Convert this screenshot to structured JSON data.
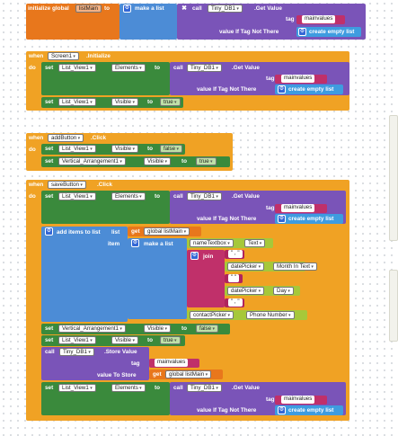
{
  "colors": {
    "global": "#e8771c",
    "event": "#f0a224",
    "component_setter": "#3a8a3c",
    "tinydb": "#7a54b8",
    "list": "#4c8cd6",
    "text": "#c0306a",
    "component_getter": "#a6c83a"
  },
  "icons": [
    "gear-icon",
    "x-icon"
  ],
  "globals": {
    "init_label": "initialize global",
    "var_name": "listMain",
    "to": "to",
    "make_list": "make a list"
  },
  "common": {
    "call": "call",
    "tinydb": "Tiny_DB1",
    "get_value": ".Get Value",
    "store_value": ".Store Value",
    "tag": "tag",
    "value_if_tag_not_there": "value If Tag Not There",
    "value_to_store": "value To Store",
    "mainvalues": "mainvalues",
    "create_empty_list": "create empty list",
    "when": "when",
    "do": "do",
    "set": "set",
    "to": "to",
    "get": "get",
    "true": "true",
    "false": "false",
    "elements": "Elements",
    "visible": "Visible",
    "list_view": "List_View1",
    "vertical_arrangement": "Vertical_Arrangement1",
    "global_list_main": "global listMain"
  },
  "events": {
    "screen_init": {
      "component": "Screen1",
      "event": ".Initialize"
    },
    "add_button_click": {
      "component": "addButton",
      "event": ".Click"
    },
    "save_button_click": {
      "component": "saveButton",
      "event": ".Click"
    }
  },
  "save_block": {
    "add_items": "add items to list",
    "list": "list",
    "item": "item",
    "make_list": "make a list",
    "name_textbox": "nameTextbox",
    "text_prop": "Text",
    "join": "join",
    "comma": "\" , \"",
    "quote_empty": "\" \"",
    "date_picker": "datePicker",
    "month_in_text": "Month In Text",
    "day": "Day",
    "contact_picker": "contactPicker",
    "phone_number": "Phone Number"
  }
}
